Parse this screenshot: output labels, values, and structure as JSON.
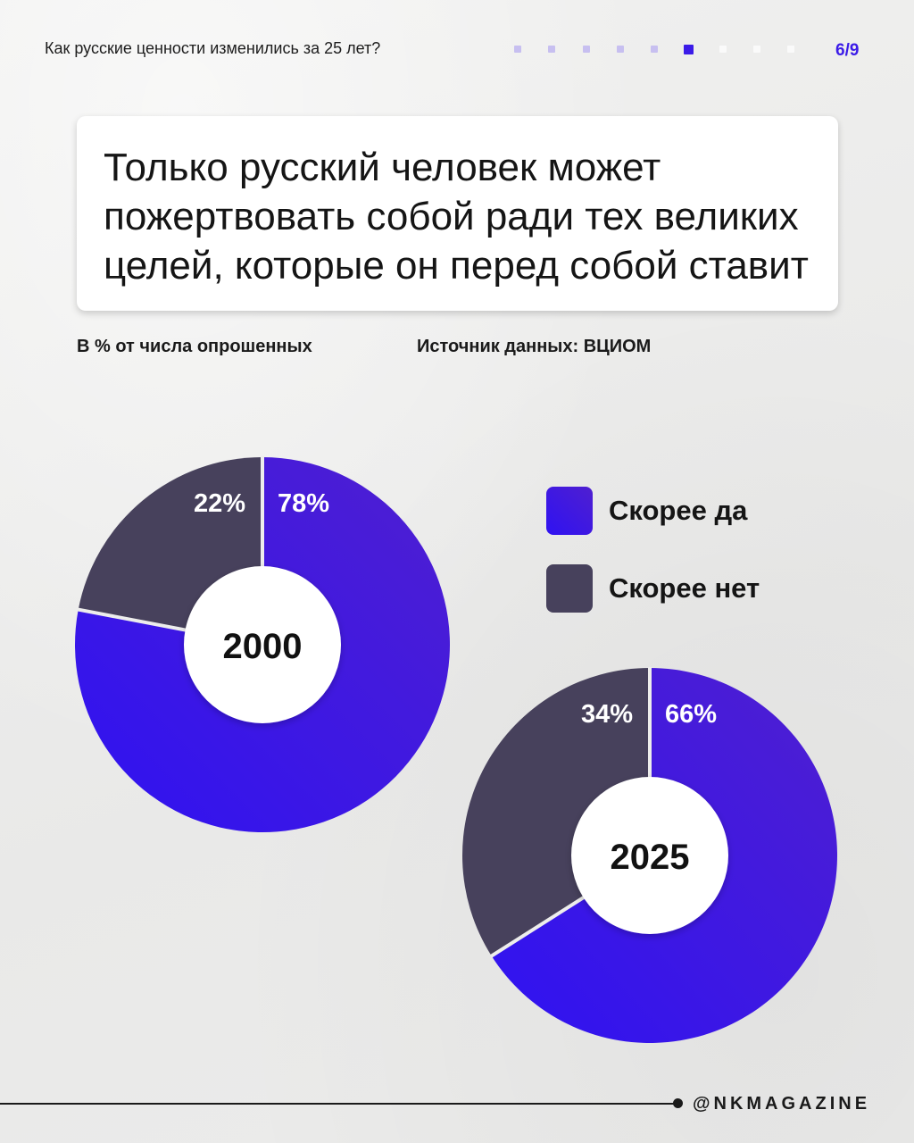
{
  "header": {
    "series_title": "Как русские ценности изменились за 25 лет?",
    "page_indicator": "6/9",
    "progress": {
      "current": 6,
      "total": 9
    },
    "dot_colors": {
      "done": "#c7bff0",
      "current": "#3b1be8",
      "upcoming": "#fafafa"
    }
  },
  "title": "Только русский человек может пожертвовать собой ради тех великих целей, которые он перед собой ставит",
  "meta": {
    "unit_note": "В % от числа опрошенных",
    "source": "Источник данных: ВЦИОМ"
  },
  "chart_data": [
    {
      "type": "pie",
      "title": "2000",
      "categories": [
        "Скорее да",
        "Скорее нет"
      ],
      "values": [
        78,
        22
      ],
      "labels": [
        "78%",
        "22%"
      ],
      "colors": [
        "#3c1af0",
        "#47415c"
      ]
    },
    {
      "type": "pie",
      "title": "2025",
      "categories": [
        "Скорее да",
        "Скорее нет"
      ],
      "values": [
        66,
        34
      ],
      "labels": [
        "66%",
        "34%"
      ],
      "colors": [
        "#3c1af0",
        "#47415c"
      ]
    }
  ],
  "legend": {
    "placement": "right",
    "items": [
      {
        "label": "Скорее да",
        "color": "#3c1af0"
      },
      {
        "label": "Скорее нет",
        "color": "#47415c"
      }
    ]
  },
  "footer": {
    "handle": "@NKMAGAZINE"
  }
}
